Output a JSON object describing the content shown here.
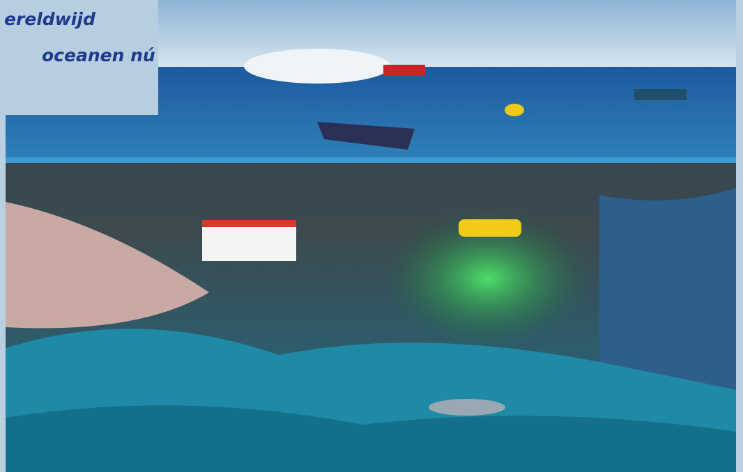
{
  "overlay": {
    "lines": [
      "ereldwijd",
      "oceanen nú"
    ]
  }
}
